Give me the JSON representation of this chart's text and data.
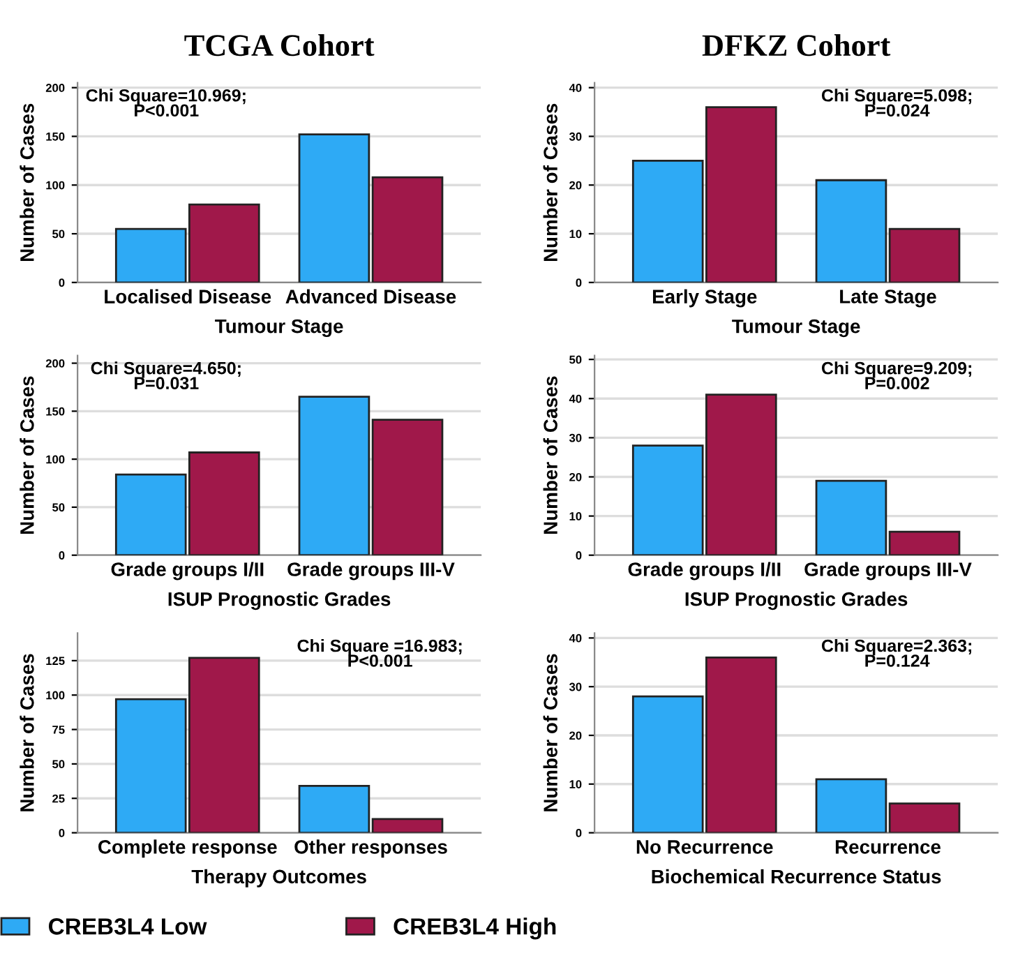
{
  "chart_data": [
    {
      "type": "bar",
      "title": "TCGA Cohort",
      "xlabel": "Tumour Stage",
      "ylabel": "Number of Cases",
      "categories": [
        "Localised Disease",
        "Advanced Disease"
      ],
      "series": [
        {
          "color": "#2eaaf5",
          "values": [
            55,
            152
          ]
        },
        {
          "color": "#a0184a",
          "values": [
            80,
            108
          ]
        }
      ],
      "ylim": [
        0,
        205
      ],
      "yticks": [
        0,
        50,
        100,
        150,
        200
      ],
      "grid": "y",
      "annotations": [
        "Chi Square=10.969;\nP<0.001"
      ]
    },
    {
      "type": "bar",
      "title": "DFKZ Cohort",
      "xlabel": "Tumour Stage",
      "ylabel": "Number of Cases",
      "categories": [
        "Early Stage",
        "Late Stage"
      ],
      "series": [
        {
          "color": "#2eaaf5",
          "values": [
            25,
            21
          ]
        },
        {
          "color": "#a0184a",
          "values": [
            36,
            11
          ]
        }
      ],
      "ylim": [
        0,
        41
      ],
      "yticks": [
        0,
        10,
        20,
        30,
        40
      ],
      "grid": "y",
      "annotations": [
        "Chi Square=5.098;\nP=0.024"
      ]
    },
    {
      "type": "bar",
      "xlabel": "ISUP Prognostic Grades",
      "ylabel": "Number of Cases",
      "categories": [
        "Grade groups I/II",
        "Grade groups III-V"
      ],
      "series": [
        {
          "color": "#2eaaf5",
          "values": [
            84,
            165
          ]
        },
        {
          "color": "#a0184a",
          "values": [
            107,
            141
          ]
        }
      ],
      "ylim": [
        0,
        208
      ],
      "yticks": [
        0,
        50,
        100,
        150,
        200
      ],
      "grid": "y",
      "annotations": [
        "Chi Square=4.650;\nP=0.031"
      ]
    },
    {
      "type": "bar",
      "xlabel": "ISUP Prognostic Grades",
      "ylabel": "Number of Cases",
      "categories": [
        "Grade groups I/II",
        "Grade groups III-V"
      ],
      "series": [
        {
          "color": "#2eaaf5",
          "values": [
            28,
            19
          ]
        },
        {
          "color": "#a0184a",
          "values": [
            41,
            6
          ]
        }
      ],
      "ylim": [
        0,
        51
      ],
      "yticks": [
        0,
        10,
        20,
        30,
        40,
        50
      ],
      "grid": "y",
      "annotations": [
        "Chi Square=9.209;\nP=0.002"
      ]
    },
    {
      "type": "bar",
      "xlabel": "Therapy Outcomes",
      "ylabel": "Number of Cases",
      "categories": [
        "Complete response",
        "Other responses"
      ],
      "series": [
        {
          "name": "CREB3L4 Low",
          "color": "#2eaaf5",
          "values": [
            97,
            34
          ]
        },
        {
          "name": "CREB3L4 High",
          "color": "#a0184a",
          "values": [
            127,
            10
          ]
        }
      ],
      "ylim": [
        0,
        145
      ],
      "yticks": [
        0,
        25,
        50,
        75,
        100,
        125
      ],
      "grid": "y",
      "legend": "bottom",
      "annotations": [
        "Chi Square =16.983;\nP<0.001"
      ]
    },
    {
      "type": "bar",
      "xlabel": "Biochemical Recurrence Status",
      "ylabel": "Number of Cases",
      "categories": [
        "No Recurrence",
        "Recurrence"
      ],
      "series": [
        {
          "color": "#2eaaf5",
          "values": [
            28,
            11
          ]
        },
        {
          "color": "#a0184a",
          "values": [
            36,
            6
          ]
        }
      ],
      "ylim": [
        0,
        41
      ],
      "yticks": [
        0,
        10,
        20,
        30,
        40
      ],
      "grid": "y",
      "annotations": [
        "Chi Square=2.363;\nP=0.124"
      ]
    }
  ]
}
